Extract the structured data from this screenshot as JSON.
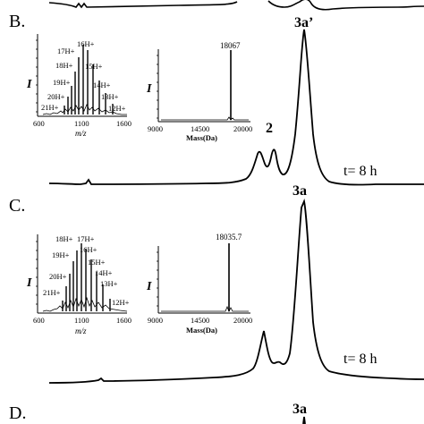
{
  "panels": [
    {
      "label": "B.",
      "peak_labels": [
        "3a’",
        "2"
      ],
      "time_label": "t= 8 h",
      "charge_states": [
        "17H+",
        "16H+",
        "18H+",
        "15H+",
        "19H+",
        "14H+",
        "20H+",
        "13H+",
        "21H+",
        "12H+"
      ],
      "mz_ticks": [
        "600",
        "1100",
        "1600"
      ],
      "mz_axis_label": "m/z",
      "deconv_value": "18067",
      "mass_ticks": [
        "9000",
        "14500",
        "20000"
      ],
      "mass_axis_label": "Mass(Da)",
      "intensity_label": "I"
    },
    {
      "label": "C.",
      "top_label": "3a",
      "time_label": "t= 8 h",
      "charge_states": [
        "18H+",
        "17H+",
        "16H+",
        "19H+",
        "15H+",
        "20H+",
        "14H+",
        "13H+",
        "21H+",
        "12H+"
      ],
      "mz_ticks": [
        "600",
        "1100",
        "1600"
      ],
      "mz_axis_label": "m/z",
      "deconv_value": "18035.7",
      "mass_ticks": [
        "9000",
        "14500",
        "20000"
      ],
      "mass_axis_label": "Mass(Da)",
      "intensity_label": "I"
    },
    {
      "label": "D.",
      "top_label": "3a"
    }
  ],
  "chart_data": [
    {
      "type": "line",
      "panel": "B",
      "description_of_axes": "chromatogram trace, no axis values printed",
      "peaks": [
        "2",
        "3a’"
      ]
    },
    {
      "type": "bar",
      "panel": "B-inset-ms",
      "xlabel": "m/z",
      "ylabel": "I",
      "xlim": [
        600,
        1600
      ],
      "x": [
        800,
        850,
        880,
        950,
        1010,
        1060,
        1110,
        1170,
        1250,
        1330,
        1420
      ],
      "values": [
        0.2,
        0.25,
        0.45,
        0.6,
        0.75,
        0.9,
        1.0,
        0.8,
        0.55,
        0.4,
        0.25
      ]
    },
    {
      "type": "bar",
      "panel": "B-inset-deconv",
      "xlabel": "Mass(Da)",
      "xlim": [
        9000,
        20000
      ],
      "x": [
        18067
      ],
      "values": [
        1.0
      ]
    },
    {
      "type": "line",
      "panel": "C",
      "description_of_axes": "chromatogram trace, no axis values printed",
      "peaks": [
        "3a"
      ]
    },
    {
      "type": "bar",
      "panel": "C-inset-ms",
      "xlabel": "m/z",
      "ylabel": "I",
      "xlim": [
        600,
        1600
      ],
      "x": [
        800,
        870,
        920,
        980,
        1040,
        1100,
        1160,
        1230,
        1310,
        1400,
        1480
      ],
      "values": [
        0.25,
        0.45,
        0.6,
        0.8,
        0.95,
        1.0,
        0.85,
        0.7,
        0.5,
        0.35,
        0.15
      ]
    },
    {
      "type": "bar",
      "panel": "C-inset-deconv",
      "xlabel": "Mass(Da)",
      "xlim": [
        9000,
        20000
      ],
      "x": [
        18035.7
      ],
      "values": [
        1.0
      ]
    }
  ]
}
